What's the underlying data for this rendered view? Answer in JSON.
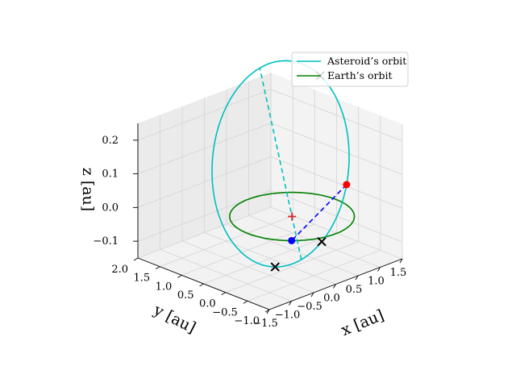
{
  "chart_data": {
    "type": "line",
    "projection": "3d",
    "axes": {
      "xlabel": "x [au]",
      "ylabel": "y [au]",
      "zlabel": "z [au]",
      "xlim": [
        -1.5,
        1.5
      ],
      "ylim": [
        -1.0,
        2.0
      ],
      "zlim": [
        -0.15,
        0.25
      ],
      "xticks": [
        "−1.5",
        "−1.0",
        "−0.5",
        "0.0",
        "0.5",
        "1.0",
        "1.5"
      ],
      "yticks": [
        "−1.0",
        "−0.5",
        "0.0",
        "0.5",
        "1.0",
        "1.5",
        "2.0"
      ],
      "zticks": [
        "−0.1",
        "0.0",
        "0.1",
        "0.2"
      ],
      "grid": true
    },
    "legend": {
      "position": "top-right",
      "entries": [
        "Asteroid’s orbit",
        "Earth’s orbit"
      ]
    },
    "series": [
      {
        "name": "Asteroid’s orbit",
        "kind": "ellipse",
        "color": "#00bfbf",
        "a": 1.3,
        "e": 0.55,
        "inclination_deg": 10,
        "ascending_node_deg": 300,
        "arg_perihelion_deg": 300
      },
      {
        "name": "Earth’s orbit",
        "kind": "circle",
        "color": "#008000",
        "radius": 1.0
      }
    ],
    "markers": [
      {
        "symbol": "sun-plus",
        "color": "#d62728",
        "point": [
          0,
          0,
          0
        ]
      },
      {
        "symbol": "asteroid-dot",
        "color": "#ff0000",
        "orbit": "asteroid",
        "true_anomaly_deg": 90
      },
      {
        "symbol": "earth-dot",
        "color": "#0000ff",
        "orbit": "earth",
        "angle_deg": 225
      },
      {
        "symbol": "cross",
        "color": "#000000",
        "orbit": "asteroid",
        "true_anomaly_deg": 35
      },
      {
        "symbol": "cross",
        "color": "#000000",
        "orbit": "asteroid",
        "true_anomaly_deg": 150
      },
      {
        "symbol": "cross",
        "color": "#000000",
        "orbit": "asteroid",
        "true_anomaly_deg": 320
      }
    ],
    "guides": [
      {
        "style": "dashed",
        "color": "#0000ff",
        "from": "asteroid-dot",
        "to": "earth-dot"
      },
      {
        "style": "dashed",
        "color": "#00bfbf",
        "from": "perihelion",
        "to": "aphelion"
      }
    ]
  }
}
